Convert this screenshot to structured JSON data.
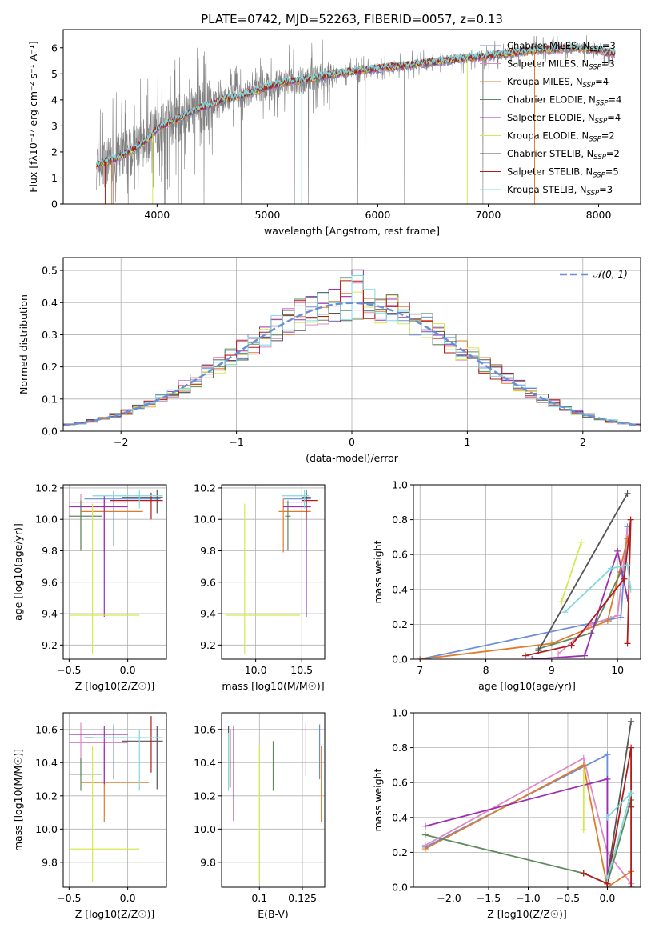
{
  "figure_title": "PLATE=0742, MJD=52263, FIBERID=0057, z=0.13",
  "colors": {
    "Chabrier MILES": "#6a8fd8",
    "Salpeter MILES": "#e08ac2",
    "Kroupa MILES": "#e07b2c",
    "Chabrier ELODIE": "#5f8a5f",
    "Salpeter ELODIE": "#9b30b0",
    "Kroupa ELODIE": "#d6e850",
    "Chabrier STELIB": "#555555",
    "Salpeter STELIB": "#b01c1c",
    "Kroupa STELIB": "#7fd9e0",
    "data": "#808080",
    "normal": "#6a8fd8",
    "grid": "#b0b0b0"
  },
  "chart_data": [
    {
      "id": "spectrum",
      "type": "line",
      "title": "PLATE=0742, MJD=52263, FIBERID=0057, z=0.13",
      "xlabel": "wavelength [Angstrom, rest frame]",
      "ylabel": "Flux [f_λ 10^-17 erg cm^-2 s^-1 A^-1]",
      "xlim": [
        3150,
        8380
      ],
      "ylim": [
        0,
        6.7
      ],
      "xticks": [
        4000,
        5000,
        6000,
        7000,
        8000
      ],
      "yticks": [
        0,
        1,
        2,
        3,
        4,
        5,
        6
      ],
      "grid": false,
      "legend_position": "upper-right",
      "series": [
        {
          "name": "Chabrier MILES, N_SSP=3"
        },
        {
          "name": "Salpeter MILES, N_SSP=3"
        },
        {
          "name": "Kroupa MILES, N_SSP=4"
        },
        {
          "name": "Chabrier ELODIE, N_SSP=4"
        },
        {
          "name": "Salpeter ELODIE, N_SSP=4"
        },
        {
          "name": "Kroupa ELODIE, N_SSP=2"
        },
        {
          "name": "Chabrier STELIB, N_SSP=2"
        },
        {
          "name": "Salpeter STELIB, N_SSP=5"
        },
        {
          "name": "Kroupa STELIB, N_SSP=3"
        }
      ],
      "continuum": {
        "x": [
          3450,
          3600,
          3750,
          3900,
          4000,
          4200,
          4400,
          4600,
          4800,
          5000,
          5200,
          5400,
          5600,
          5800,
          6000,
          6200,
          6400,
          6600,
          6800,
          7000,
          7200,
          7400,
          7600,
          7800,
          8000,
          8100
        ],
        "y": [
          1.5,
          1.7,
          2.0,
          2.4,
          2.9,
          3.3,
          3.7,
          4.0,
          4.2,
          4.5,
          4.7,
          4.8,
          5.0,
          5.1,
          5.2,
          5.3,
          5.4,
          5.5,
          5.6,
          5.7,
          5.8,
          5.9,
          5.95,
          6.0,
          5.9,
          5.8
        ]
      }
    },
    {
      "id": "residuals",
      "type": "line",
      "xlabel": "(data-model)/error",
      "ylabel": "Normed distribution",
      "xlim": [
        -2.5,
        2.5
      ],
      "ylim": [
        0,
        0.54
      ],
      "xticks": [
        -2,
        -1,
        0,
        1,
        2
      ],
      "yticks": [
        0.0,
        0.1,
        0.2,
        0.3,
        0.4,
        0.5
      ],
      "grid": true,
      "legend_position": "upper-right",
      "legend_label": "N(0,1)"
    },
    {
      "id": "z-age",
      "type": "scatter",
      "xlabel": "Z [log10(Z/Z☉)]",
      "ylabel": "age [log10(age/yr)]",
      "xlim": [
        -0.55,
        0.33
      ],
      "ylim": [
        9.11,
        10.22
      ],
      "xticks": [
        -0.5,
        0.0
      ],
      "yticks": [
        9.2,
        9.4,
        9.6,
        9.8,
        10.0,
        10.2
      ],
      "grid": true,
      "points": [
        {
          "model": "Chabrier MILES",
          "x": -0.12,
          "y": 10.13,
          "xerr": [
            0.25,
            0.4
          ],
          "yerr": [
            0.3,
            0.05
          ]
        },
        {
          "model": "Salpeter MILES",
          "x": -0.4,
          "y": 10.11,
          "xerr": [
            0.1,
            0.4
          ],
          "yerr": [
            0.3,
            0.05
          ]
        },
        {
          "model": "Kroupa MILES",
          "x": -0.2,
          "y": 10.05,
          "xerr": [
            0.2,
            0.33
          ],
          "yerr": [
            0.26,
            0.08
          ]
        },
        {
          "model": "Chabrier ELODIE",
          "x": -0.4,
          "y": 10.02,
          "xerr": [
            0.1,
            0.18
          ],
          "yerr": [
            0.22,
            0.1
          ]
        },
        {
          "model": "Salpeter ELODIE",
          "x": -0.2,
          "y": 10.08,
          "xerr": [
            0.3,
            0.2
          ],
          "yerr": [
            0.7,
            0.07
          ]
        },
        {
          "model": "Kroupa ELODIE",
          "x": -0.3,
          "y": 9.39,
          "xerr": [
            0.2,
            0.4
          ],
          "yerr": [
            0.25,
            0.71
          ]
        },
        {
          "model": "Chabrier STELIB",
          "x": 0.25,
          "y": 10.14,
          "xerr": [
            0.3,
            0.05
          ],
          "yerr": [
            0.1,
            0.05
          ]
        },
        {
          "model": "Salpeter STELIB",
          "x": 0.2,
          "y": 10.12,
          "xerr": [
            0.35,
            0.1
          ],
          "yerr": [
            0.12,
            0.05
          ]
        },
        {
          "model": "Kroupa STELIB",
          "x": 0.1,
          "y": 10.15,
          "xerr": [
            0.4,
            0.2
          ],
          "yerr": [
            0.08,
            0.04
          ]
        }
      ]
    },
    {
      "id": "mass-age",
      "type": "scatter",
      "xlabel": "mass [log10(M/M☉)]",
      "ylabel": "",
      "xlim": [
        9.63,
        10.75
      ],
      "ylim": [
        9.11,
        10.22
      ],
      "xticks": [
        10.0,
        10.5
      ],
      "yticks": [
        9.2,
        9.4,
        9.6,
        9.8,
        10.0,
        10.2
      ],
      "grid": true,
      "points": [
        {
          "model": "Chabrier MILES",
          "x": 10.55,
          "y": 10.13,
          "xerr": [
            0.25,
            0.05
          ],
          "yerr": [
            0.3,
            0.05
          ]
        },
        {
          "model": "Salpeter MILES",
          "x": 10.55,
          "y": 10.11,
          "xerr": [
            0.25,
            0.05
          ],
          "yerr": [
            0.3,
            0.05
          ]
        },
        {
          "model": "Kroupa MILES",
          "x": 10.3,
          "y": 10.05,
          "xerr": [
            0.05,
            0.3
          ],
          "yerr": [
            0.26,
            0.08
          ]
        },
        {
          "model": "Chabrier ELODIE",
          "x": 10.35,
          "y": 10.02,
          "xerr": [
            0.03,
            0.03
          ],
          "yerr": [
            0.22,
            0.1
          ]
        },
        {
          "model": "Salpeter ELODIE",
          "x": 10.55,
          "y": 10.08,
          "xerr": [
            0.25,
            0.05
          ],
          "yerr": [
            0.7,
            0.07
          ]
        },
        {
          "model": "Kroupa ELODIE",
          "x": 9.88,
          "y": 9.39,
          "xerr": [
            0.2,
            0.6
          ],
          "yerr": [
            0.25,
            0.71
          ]
        },
        {
          "model": "Chabrier STELIB",
          "x": 10.55,
          "y": 10.14,
          "xerr": [
            0.05,
            0.05
          ],
          "yerr": [
            0.1,
            0.05
          ]
        },
        {
          "model": "Salpeter STELIB",
          "x": 10.55,
          "y": 10.12,
          "xerr": [
            0.05,
            0.12
          ],
          "yerr": [
            0.12,
            0.05
          ]
        },
        {
          "model": "Kroupa STELIB",
          "x": 10.53,
          "y": 10.15,
          "xerr": [
            0.25,
            0.05
          ],
          "yerr": [
            0.08,
            0.04
          ]
        }
      ]
    },
    {
      "id": "age-weight",
      "type": "line",
      "xlabel": "age [log10(age/yr)]",
      "ylabel": "mass weight",
      "xlim": [
        6.9,
        10.35
      ],
      "ylim": [
        0,
        1.0
      ],
      "xticks": [
        7,
        8,
        9,
        10
      ],
      "yticks": [
        0.0,
        0.2,
        0.4,
        0.6,
        0.8,
        1.0
      ],
      "grid": true,
      "series": [
        {
          "model": "Chabrier MILES",
          "x": [
            7.0,
            9.9,
            10.05,
            10.15
          ],
          "y": [
            0.0,
            0.23,
            0.24,
            0.76
          ]
        },
        {
          "model": "Salpeter MILES",
          "x": [
            9.1,
            9.6,
            10.0,
            10.15
          ],
          "y": [
            0.03,
            0.2,
            0.25,
            0.74
          ]
        },
        {
          "model": "Kroupa MILES",
          "x": [
            7.0,
            9.0,
            9.85,
            10.15
          ],
          "y": [
            0.0,
            0.09,
            0.22,
            0.69
          ]
        },
        {
          "model": "Chabrier ELODIE",
          "x": [
            8.8,
            9.6,
            10.05
          ],
          "y": [
            0.06,
            0.15,
            0.5
          ]
        },
        {
          "model": "Salpeter ELODIE",
          "x": [
            8.7,
            9.5,
            10.0,
            10.15
          ],
          "y": [
            0.0,
            0.02,
            0.62,
            0.35
          ]
        },
        {
          "model": "Kroupa ELODIE",
          "x": [
            9.15,
            9.45
          ],
          "y": [
            0.33,
            0.67
          ]
        },
        {
          "model": "Chabrier STELIB",
          "x": [
            8.8,
            10.15
          ],
          "y": [
            0.05,
            0.95
          ]
        },
        {
          "model": "Salpeter STELIB",
          "x": [
            8.6,
            9.3,
            10.1,
            10.2,
            10.15
          ],
          "y": [
            0.02,
            0.08,
            0.46,
            0.8,
            0.09
          ]
        },
        {
          "model": "Kroupa STELIB",
          "x": [
            9.2,
            9.9,
            10.15,
            10.2
          ],
          "y": [
            0.27,
            0.52,
            0.54,
            0.4
          ]
        }
      ]
    },
    {
      "id": "z-mass",
      "type": "scatter",
      "xlabel": "Z [log10(Z/Z☉)]",
      "ylabel": "mass [log10(M/M☉)]",
      "xlim": [
        -0.55,
        0.33
      ],
      "ylim": [
        9.65,
        10.7
      ],
      "xticks": [
        -0.5,
        0.0
      ],
      "yticks": [
        9.8,
        10.0,
        10.2,
        10.4,
        10.6
      ],
      "grid": true,
      "points": [
        {
          "model": "Chabrier MILES",
          "x": -0.12,
          "y": 10.55,
          "xerr": [
            0.25,
            0.4
          ],
          "yerr": [
            0.25,
            0.08
          ]
        },
        {
          "model": "Salpeter MILES",
          "x": -0.4,
          "y": 10.52,
          "xerr": [
            0.1,
            0.4
          ],
          "yerr": [
            0.2,
            0.12
          ]
        },
        {
          "model": "Kroupa MILES",
          "x": -0.2,
          "y": 10.28,
          "xerr": [
            0.2,
            0.38
          ],
          "yerr": [
            0.24,
            0.22
          ]
        },
        {
          "model": "Chabrier ELODIE",
          "x": -0.4,
          "y": 10.33,
          "xerr": [
            0.1,
            0.18
          ],
          "yerr": [
            0.1,
            0.1
          ]
        },
        {
          "model": "Salpeter ELODIE",
          "x": -0.2,
          "y": 10.57,
          "xerr": [
            0.3,
            0.2
          ],
          "yerr": [
            0.3,
            0.05
          ]
        },
        {
          "model": "Kroupa ELODIE",
          "x": -0.3,
          "y": 9.88,
          "xerr": [
            0.2,
            0.4
          ],
          "yerr": [
            0.2,
            0.62
          ]
        },
        {
          "model": "Chabrier STELIB",
          "x": 0.25,
          "y": 10.53,
          "xerr": [
            0.3,
            0.05
          ],
          "yerr": [
            0.29,
            0.09
          ]
        },
        {
          "model": "Salpeter STELIB",
          "x": 0.2,
          "y": 10.55,
          "xerr": [
            0.35,
            0.1
          ],
          "yerr": [
            0.21,
            0.13
          ]
        },
        {
          "model": "Kroupa STELIB",
          "x": 0.1,
          "y": 10.55,
          "xerr": [
            0.4,
            0.2
          ],
          "yerr": [
            0.32,
            0.05
          ]
        }
      ]
    },
    {
      "id": "ebv-mass",
      "type": "scatter",
      "xlabel": "E(B-V)",
      "ylabel": "",
      "xlim": [
        0.078,
        0.138
      ],
      "ylim": [
        9.65,
        10.7
      ],
      "xticks": [
        0.1,
        0.125
      ],
      "yticks": [
        9.8,
        10.0,
        10.2,
        10.4,
        10.6
      ],
      "grid": true,
      "points": [
        {
          "model": "Chabrier MILES",
          "x": 0.135,
          "y": 10.55,
          "yerr": [
            0.25,
            0.08
          ]
        },
        {
          "model": "Salpeter MILES",
          "x": 0.127,
          "y": 10.52,
          "yerr": [
            0.2,
            0.12
          ]
        },
        {
          "model": "Kroupa MILES",
          "x": 0.136,
          "y": 10.28,
          "yerr": [
            0.24,
            0.22
          ]
        },
        {
          "model": "Chabrier ELODIE",
          "x": 0.108,
          "y": 10.38,
          "yerr": [
            0.15,
            0.15
          ]
        },
        {
          "model": "Salpeter ELODIE",
          "x": 0.085,
          "y": 10.5,
          "yerr": [
            0.45,
            0.12
          ]
        },
        {
          "model": "Kroupa ELODIE",
          "x": 0.1,
          "y": 9.88,
          "yerr": [
            0.2,
            0.62
          ]
        },
        {
          "model": "Chabrier STELIB",
          "x": 0.082,
          "y": 10.5,
          "yerr": [
            0.25,
            0.12
          ]
        },
        {
          "model": "Salpeter STELIB",
          "x": 0.083,
          "y": 10.45,
          "yerr": [
            0.2,
            0.15
          ]
        },
        {
          "model": "Kroupa STELIB",
          "x": 0.082,
          "y": 10.45,
          "yerr": [
            0.22,
            0.13
          ]
        }
      ]
    },
    {
      "id": "z-weight",
      "type": "line",
      "xlabel": "Z [log10(Z/Z☉)]",
      "ylabel": "mass weight",
      "xlim": [
        -2.45,
        0.42
      ],
      "ylim": [
        0,
        1.0
      ],
      "xticks": [
        -2.0,
        -1.5,
        -1.0,
        -0.5,
        0.0
      ],
      "yticks": [
        0.0,
        0.2,
        0.4,
        0.6,
        0.8,
        1.0
      ],
      "grid": true,
      "series": [
        {
          "model": "Chabrier MILES",
          "x": [
            -2.3,
            0.0,
            0.0
          ],
          "y": [
            0.23,
            0.76,
            0.4
          ]
        },
        {
          "model": "Salpeter MILES",
          "x": [
            -2.3,
            -0.3,
            0.0,
            0.3
          ],
          "y": [
            0.24,
            0.74,
            0.2,
            0.02
          ]
        },
        {
          "model": "Kroupa MILES",
          "x": [
            -2.3,
            -0.3,
            0.0,
            0.3
          ],
          "y": [
            0.22,
            0.7,
            0.0,
            0.09
          ]
        },
        {
          "model": "Chabrier ELODIE",
          "x": [
            -2.3,
            -0.3,
            0.0,
            0.3
          ],
          "y": [
            0.3,
            0.08,
            0.02,
            0.5
          ]
        },
        {
          "model": "Salpeter ELODIE",
          "x": [
            -2.3,
            0.0,
            0.0
          ],
          "y": [
            0.35,
            0.62,
            0.02
          ]
        },
        {
          "model": "Kroupa ELODIE",
          "x": [
            -0.3,
            -0.3
          ],
          "y": [
            0.67,
            0.33
          ]
        },
        {
          "model": "Chabrier STELIB",
          "x": [
            0.0,
            0.3
          ],
          "y": [
            0.05,
            0.95
          ]
        },
        {
          "model": "Salpeter STELIB",
          "x": [
            -0.3,
            0.0,
            0.3,
            0.3,
            0.3
          ],
          "y": [
            0.08,
            0.02,
            0.8,
            0.46,
            0.0
          ]
        },
        {
          "model": "Kroupa STELIB",
          "x": [
            0.0,
            0.3,
            0.0
          ],
          "y": [
            0.4,
            0.54,
            0.05
          ]
        }
      ]
    }
  ]
}
